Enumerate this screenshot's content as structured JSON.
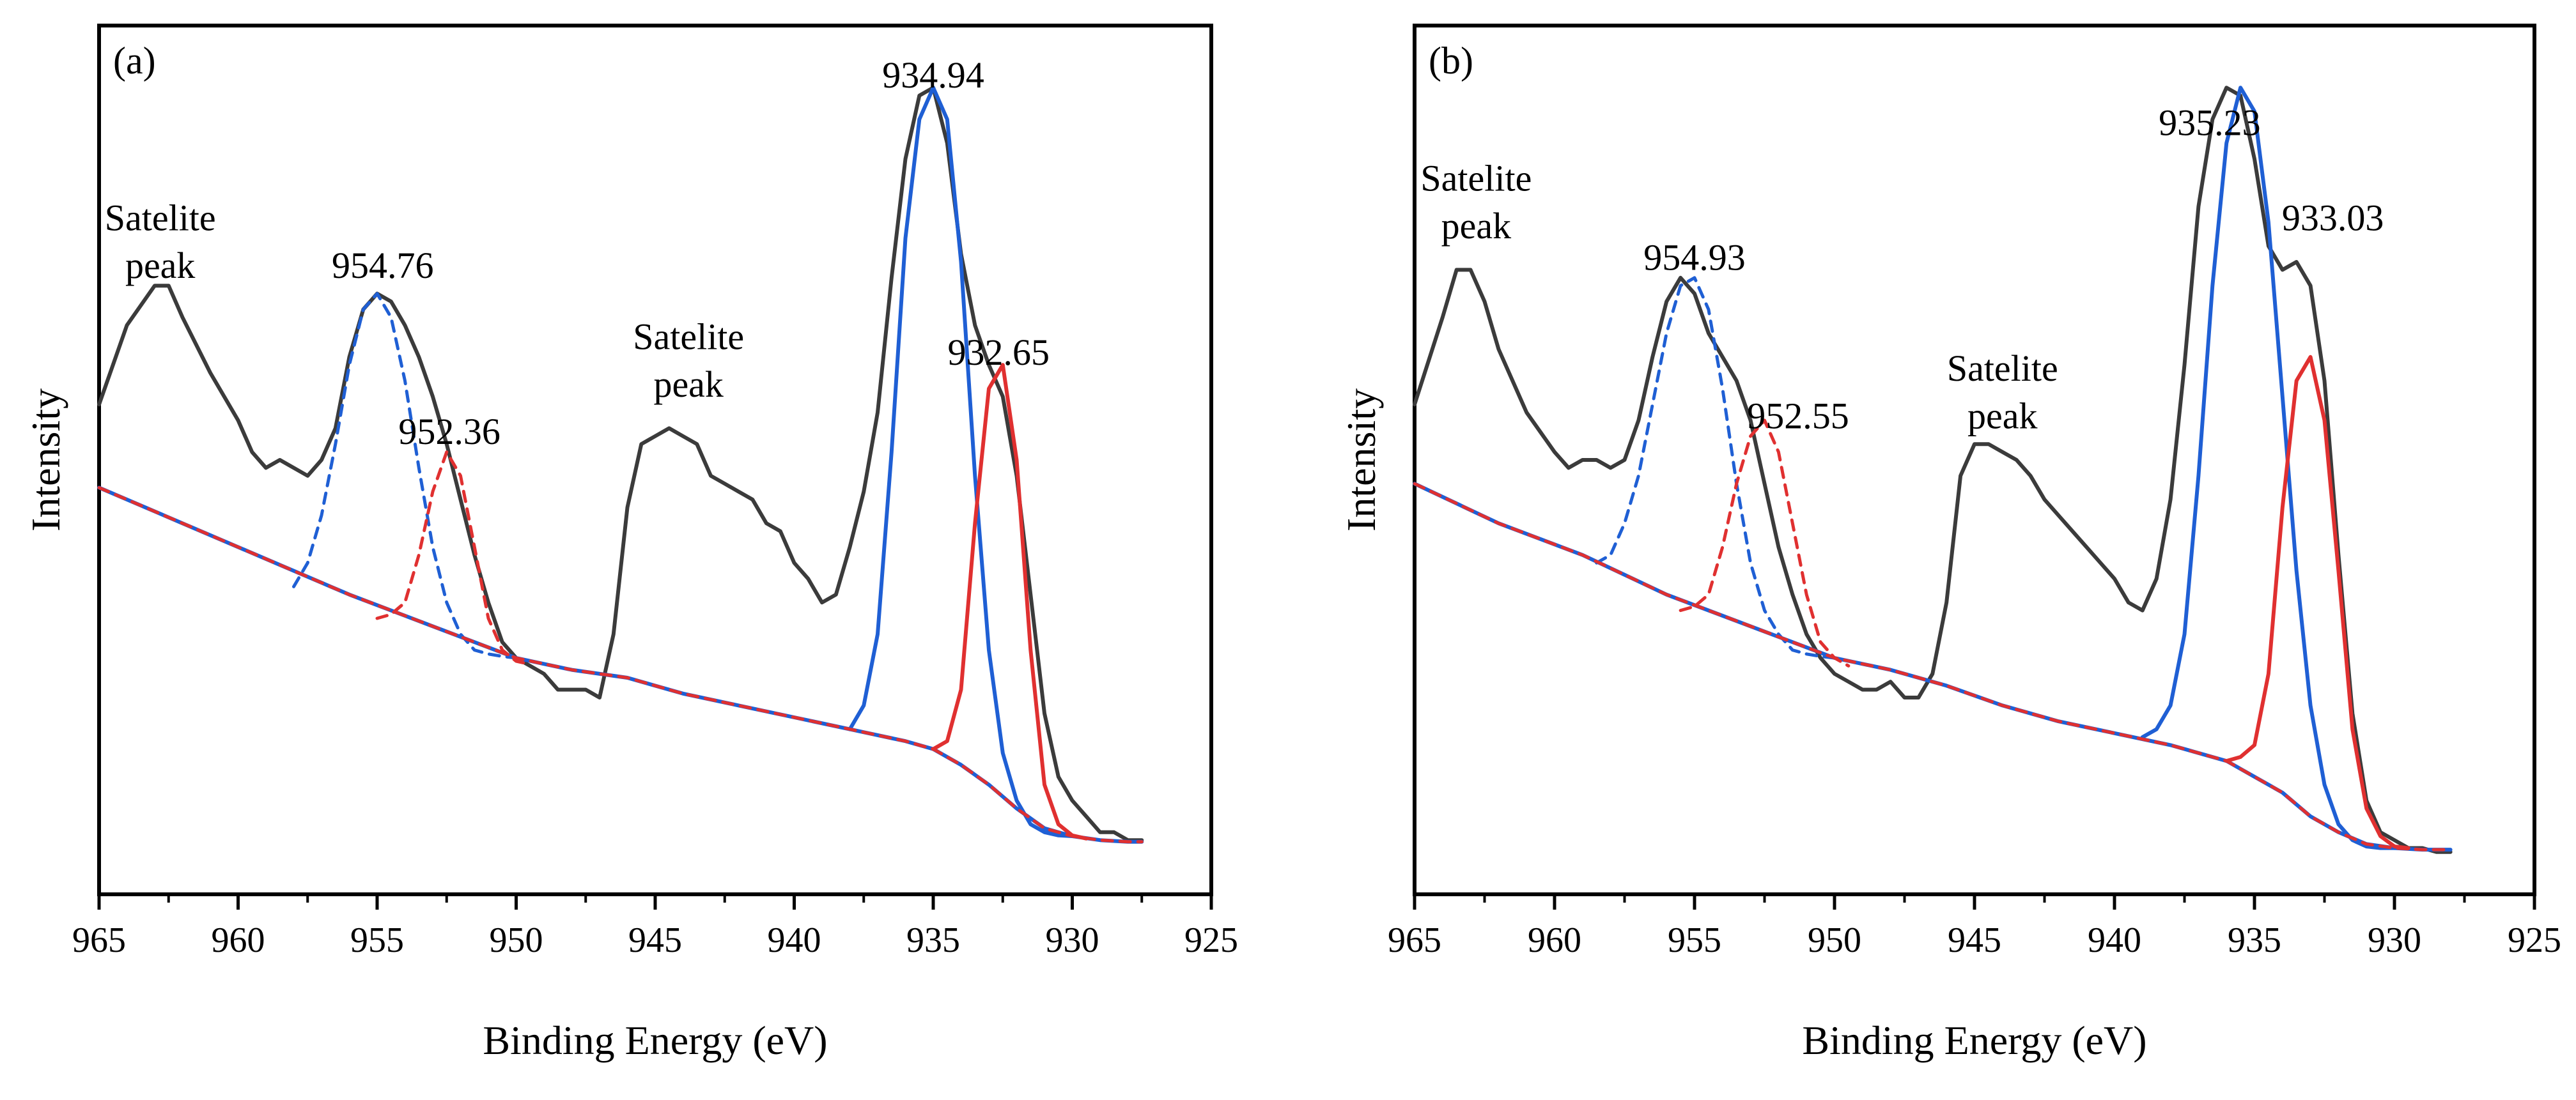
{
  "chart_data": [
    {
      "type": "line",
      "panel_label": "(a)",
      "xlabel": "Binding Energy (eV)",
      "ylabel": "Intensity",
      "xlim": [
        965,
        925
      ],
      "ylim": [
        0,
        100
      ],
      "x_ticks": [
        965,
        960,
        955,
        950,
        945,
        940,
        935,
        930,
        925
      ],
      "x_tick_labels": [
        "965",
        "960",
        "955",
        "950",
        "945",
        "940",
        "935",
        "930",
        "925"
      ],
      "show_y_ticks": false,
      "grid": false,
      "legend": "none",
      "annotations": [
        {
          "text": "934.94",
          "x": 935.0,
          "y": 97
        },
        {
          "text": "954.76",
          "x": 954.8,
          "y": 73
        },
        {
          "text": "932.65",
          "x": 932.65,
          "y": 62
        },
        {
          "text": "952.36",
          "x": 952.4,
          "y": 52
        },
        {
          "text": "Satelite",
          "x": 962.8,
          "y": 79
        },
        {
          "text": "peak",
          "x": 962.8,
          "y": 73
        },
        {
          "text": "Satelite",
          "x": 943.8,
          "y": 64
        },
        {
          "text": "peak",
          "x": 943.8,
          "y": 58
        }
      ],
      "series": [
        {
          "role": "raw spectrum",
          "color": "#3b3b3b",
          "dash": "solid",
          "x": [
            965,
            964,
            963,
            962.5,
            962,
            961,
            960,
            959.5,
            959,
            958.5,
            958,
            957.5,
            957,
            956.5,
            956,
            955.5,
            955,
            954.5,
            954,
            953.5,
            953,
            952.5,
            952,
            951.5,
            951,
            950.5,
            950,
            949.5,
            949,
            948.5,
            948,
            947.5,
            947,
            946.5,
            946,
            945.5,
            945,
            944.5,
            944,
            943.5,
            943,
            942.5,
            942,
            941.5,
            941,
            940.5,
            940,
            939.5,
            939,
            938.5,
            938,
            937.5,
            937,
            936.5,
            936,
            935.5,
            935,
            934.5,
            934,
            933.5,
            933,
            932.5,
            932,
            931.5,
            931,
            930.5,
            930,
            929.5,
            929,
            928.5,
            928,
            927.5
          ],
          "y": [
            57,
            67,
            72,
            72,
            68,
            61,
            55,
            51,
            49,
            50,
            49,
            48,
            50,
            54,
            63,
            69,
            71,
            70,
            67,
            63,
            58,
            52,
            45,
            38,
            32,
            27,
            25,
            24,
            23,
            21,
            21,
            21,
            20,
            28,
            44,
            52,
            53,
            54,
            53,
            52,
            48,
            47,
            46,
            45,
            42,
            41,
            37,
            35,
            32,
            33,
            39,
            46,
            56,
            73,
            88,
            96,
            97,
            90,
            76,
            67,
            62,
            58,
            48,
            33,
            18,
            10,
            7,
            5,
            3,
            3,
            2,
            2
          ]
        },
        {
          "role": "background",
          "color": "#1f5fd4",
          "dash": "solid",
          "x": [
            965,
            962,
            959,
            956,
            953,
            950,
            948,
            946,
            944,
            942,
            940,
            938,
            936,
            935,
            934,
            933,
            932,
            931,
            930,
            929,
            928,
            927.5
          ],
          "y": [
            46.5,
            42,
            37.5,
            33,
            29,
            25,
            23.5,
            22.5,
            20.5,
            19,
            17.5,
            16,
            14.5,
            13.5,
            11.5,
            9,
            6,
            3.5,
            2.5,
            2,
            1.8,
            1.8
          ]
        },
        {
          "role": "fit peak 954.76",
          "color": "#1f5fd4",
          "dash": "dashed",
          "x": [
            958,
            957.5,
            957,
            956.5,
            956,
            955.5,
            955,
            954.5,
            954,
            953.5,
            953,
            952.5,
            952,
            951.5,
            951,
            950.5,
            950
          ],
          "y": [
            34,
            37,
            43,
            52,
            62,
            69,
            71,
            68,
            60,
            49,
            39,
            32,
            28,
            26,
            25.5,
            25.2,
            25
          ]
        },
        {
          "role": "fit peak 952.36",
          "color": "#e03030",
          "dash": "dashed",
          "x": [
            955,
            954.5,
            954,
            953.5,
            953,
            952.5,
            952,
            951.5,
            951,
            950.5,
            950,
            949.5
          ],
          "y": [
            30,
            30.5,
            32,
            38,
            46,
            51,
            48,
            39,
            30,
            26,
            24.6,
            24.2
          ]
        },
        {
          "role": "fit peak 934.94",
          "color": "#1f5fd4",
          "dash": "solid",
          "x": [
            938,
            937.5,
            937,
            936.5,
            936,
            935.5,
            935,
            934.5,
            934,
            933.5,
            933,
            932.5,
            932,
            931.5,
            931,
            930.5,
            930
          ],
          "y": [
            16,
            19,
            28,
            51,
            78,
            93,
            97,
            93,
            75,
            48,
            26,
            13,
            7,
            4,
            3,
            2.6,
            2.5
          ]
        },
        {
          "role": "fit peak 932.65",
          "color": "#e03030",
          "dash": "solid",
          "x": [
            935,
            934.5,
            934,
            933.5,
            933,
            932.5,
            932,
            931.5,
            931,
            930.5,
            930,
            929.5
          ],
          "y": [
            13.5,
            14.5,
            21,
            42,
            59,
            62,
            50,
            26,
            9,
            4,
            2.6,
            2.2
          ]
        },
        {
          "role": "fit envelope",
          "color": "#e03030",
          "dash": "dashed",
          "x": [
            965,
            962,
            959,
            956,
            953,
            950,
            948,
            946,
            944,
            942,
            940,
            938,
            936,
            935,
            934,
            933,
            932,
            931,
            930,
            929,
            928,
            927.5
          ],
          "y": [
            46.5,
            42,
            37.5,
            33,
            29,
            25,
            23.5,
            22.5,
            20.5,
            19,
            17.5,
            16,
            14.5,
            13.5,
            11.5,
            9,
            6,
            3.5,
            2.5,
            2,
            1.8,
            1.8
          ]
        }
      ]
    },
    {
      "type": "line",
      "panel_label": "(b)",
      "xlabel": "Binding Energy (eV)",
      "ylabel": "Intensity",
      "xlim": [
        965,
        925
      ],
      "ylim": [
        0,
        100
      ],
      "x_ticks": [
        965,
        960,
        955,
        950,
        945,
        940,
        935,
        930,
        925
      ],
      "x_tick_labels": [
        "965",
        "960",
        "955",
        "950",
        "945",
        "940",
        "935",
        "930",
        "925"
      ],
      "show_y_ticks": false,
      "grid": false,
      "legend": "none",
      "annotations": [
        {
          "text": "935.23",
          "x": 936.6,
          "y": 91
        },
        {
          "text": "933.03",
          "x": 932.2,
          "y": 79
        },
        {
          "text": "954.93",
          "x": 955.0,
          "y": 74
        },
        {
          "text": "952.55",
          "x": 951.3,
          "y": 54
        },
        {
          "text": "Satelite",
          "x": 962.8,
          "y": 84
        },
        {
          "text": "peak",
          "x": 962.8,
          "y": 78
        },
        {
          "text": "Satelite",
          "x": 944.0,
          "y": 60
        },
        {
          "text": "peak",
          "x": 944.0,
          "y": 54
        }
      ],
      "series": [
        {
          "role": "raw spectrum",
          "color": "#3b3b3b",
          "dash": "solid",
          "x": [
            965,
            964,
            963.5,
            963,
            962.5,
            962,
            961,
            960,
            959.5,
            959,
            958.5,
            958,
            957.5,
            957,
            956.5,
            956,
            955.5,
            955,
            954.5,
            954,
            953.5,
            953,
            952.5,
            952,
            951.5,
            951,
            950.5,
            950,
            949.5,
            949,
            948.5,
            948,
            947.5,
            947,
            946.5,
            946,
            945.5,
            945,
            944.5,
            944,
            943.5,
            943,
            942.5,
            942,
            941.5,
            941,
            940.5,
            940,
            939.5,
            939,
            938.5,
            938,
            937.5,
            937,
            936.5,
            936,
            935.5,
            935,
            934.5,
            934,
            933.5,
            933,
            932.5,
            932,
            931.5,
            931,
            930.5,
            930,
            929.5,
            929,
            928.5,
            928
          ],
          "y": [
            57,
            68,
            74,
            74,
            70,
            64,
            56,
            51,
            49,
            50,
            50,
            49,
            50,
            55,
            63,
            70,
            73,
            71,
            66,
            63,
            60,
            55,
            47,
            39,
            33,
            28,
            25,
            23,
            22,
            21,
            21,
            22,
            20,
            20,
            23,
            32,
            48,
            52,
            52,
            51,
            50,
            48,
            45,
            43,
            41,
            39,
            37,
            35,
            32,
            31,
            35,
            45,
            62,
            82,
            93,
            97,
            96,
            88,
            77,
            74,
            75,
            72,
            60,
            38,
            18,
            7,
            3,
            2,
            1,
            1,
            0.5,
            0.5
          ]
        },
        {
          "role": "background",
          "color": "#1f5fd4",
          "dash": "solid",
          "x": [
            965,
            962,
            959,
            956,
            953,
            950,
            948,
            946,
            944,
            942,
            940,
            938,
            936,
            935,
            934,
            933,
            932,
            931,
            930,
            929,
            928
          ],
          "y": [
            47,
            42,
            38,
            33,
            29,
            25,
            23.5,
            21.5,
            19,
            17,
            15.5,
            14,
            12,
            10,
            8,
            5,
            3,
            1.5,
            1,
            0.8,
            0.8
          ]
        },
        {
          "role": "fit peak 954.93",
          "color": "#1f5fd4",
          "dash": "dashed",
          "x": [
            958.5,
            958,
            957.5,
            957,
            956.5,
            956,
            955.5,
            955,
            954.5,
            954,
            953.5,
            953,
            952.5,
            952,
            951.5,
            951,
            950.5,
            950
          ],
          "y": [
            37,
            38,
            42,
            48,
            57,
            66,
            72,
            73,
            69,
            59,
            47,
            37,
            31,
            28,
            26,
            25.5,
            25.2,
            25
          ]
        },
        {
          "role": "fit peak 952.55",
          "color": "#e03030",
          "dash": "dashed",
          "x": [
            955.5,
            955,
            954.5,
            954,
            953.5,
            953,
            952.5,
            952,
            951.5,
            951,
            950.5,
            950,
            949.5
          ],
          "y": [
            31,
            31.5,
            33,
            39,
            47,
            53,
            55,
            51,
            42,
            33,
            27,
            25,
            24
          ]
        },
        {
          "role": "fit peak 935.23",
          "color": "#1f5fd4",
          "dash": "solid",
          "x": [
            939,
            938.5,
            938,
            937.5,
            937,
            936.5,
            936,
            935.5,
            935,
            934.5,
            934,
            933.5,
            933,
            932.5,
            932,
            931.5,
            931,
            930.5,
            930
          ],
          "y": [
            15,
            16,
            19,
            28,
            48,
            72,
            90,
            97,
            94,
            80,
            58,
            36,
            19,
            9,
            4,
            2,
            1.2,
            1,
            1
          ]
        },
        {
          "role": "fit peak 933.03",
          "color": "#e03030",
          "dash": "solid",
          "x": [
            936,
            935.5,
            935,
            934.5,
            934,
            933.5,
            933,
            932.5,
            932,
            931.5,
            931,
            930.5,
            930,
            929.5
          ],
          "y": [
            12,
            12.5,
            14,
            23,
            44,
            60,
            63,
            55,
            36,
            16,
            6,
            2.5,
            1.2,
            1
          ]
        },
        {
          "role": "fit envelope",
          "color": "#e03030",
          "dash": "dashed",
          "x": [
            965,
            962,
            959,
            956,
            953,
            950,
            948,
            946,
            944,
            942,
            940,
            938,
            936,
            935,
            934,
            933,
            932,
            931,
            930,
            929,
            928
          ],
          "y": [
            47,
            42,
            38,
            33,
            29,
            25,
            23.5,
            21.5,
            19,
            17,
            15.5,
            14,
            12,
            10,
            8,
            5,
            3,
            1.5,
            1,
            0.8,
            0.8
          ]
        }
      ]
    }
  ]
}
